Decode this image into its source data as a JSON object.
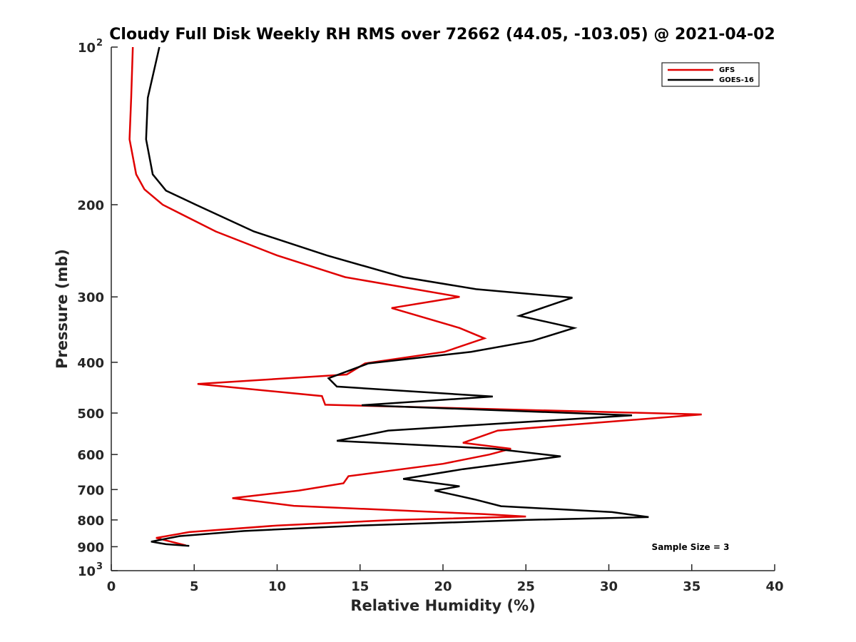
{
  "chart_data": {
    "type": "line",
    "title": "Cloudy Full Disk Weekly RH RMS over 72662 (44.05, -103.05) @ 2021-04-02",
    "xlabel": "Relative Humidity (%)",
    "ylabel": "Pressure (mb)",
    "xlim": [
      0,
      40
    ],
    "ylim": [
      100,
      1000
    ],
    "y_scale": "log",
    "y_reversed": true,
    "grid": false,
    "legend_position": "top-right",
    "x_ticks": [
      "0",
      "5",
      "10",
      "15",
      "20",
      "25",
      "30",
      "35",
      "40"
    ],
    "y_ticks": [
      {
        "value": 100,
        "base": "10",
        "exp": "2"
      },
      {
        "value": 200,
        "label": "200"
      },
      {
        "value": 300,
        "label": "300"
      },
      {
        "value": 400,
        "label": "400"
      },
      {
        "value": 500,
        "label": "500"
      },
      {
        "value": 600,
        "label": "600"
      },
      {
        "value": 700,
        "label": "700"
      },
      {
        "value": 800,
        "label": "800"
      },
      {
        "value": 900,
        "label": "900"
      },
      {
        "value": 1000,
        "base": "10",
        "exp": "3"
      }
    ],
    "annotation": "Sample Size = 3",
    "series": [
      {
        "name": "GFS",
        "color": "#e00000",
        "points": [
          [
            1.3,
            100
          ],
          [
            1.2,
            125
          ],
          [
            1.1,
            150
          ],
          [
            1.5,
            175
          ],
          [
            2.0,
            187
          ],
          [
            3.1,
            200
          ],
          [
            6.3,
            225
          ],
          [
            10.0,
            250
          ],
          [
            14.1,
            275
          ],
          [
            21.0,
            300
          ],
          [
            16.9,
            315
          ],
          [
            21.0,
            344
          ],
          [
            22.5,
            360
          ],
          [
            20.1,
            382
          ],
          [
            15.3,
            402
          ],
          [
            14.2,
            422
          ],
          [
            5.2,
            440
          ],
          [
            12.7,
            464
          ],
          [
            12.9,
            482
          ],
          [
            35.6,
            503
          ],
          [
            23.3,
            540
          ],
          [
            21.2,
            570
          ],
          [
            24.1,
            585
          ],
          [
            22.8,
            600
          ],
          [
            20.0,
            625
          ],
          [
            14.3,
            660
          ],
          [
            14.0,
            681
          ],
          [
            11.3,
            703
          ],
          [
            7.3,
            727
          ],
          [
            11.0,
            752
          ],
          [
            22.5,
            780
          ],
          [
            25.0,
            788
          ],
          [
            17.1,
            800
          ],
          [
            10.0,
            820
          ],
          [
            4.7,
            844
          ],
          [
            2.7,
            866
          ],
          [
            3.4,
            877
          ],
          [
            4.5,
            895
          ]
        ]
      },
      {
        "name": "GOES-16",
        "color": "#000000",
        "points": [
          [
            2.9,
            100
          ],
          [
            2.2,
            125
          ],
          [
            2.1,
            150
          ],
          [
            2.5,
            175
          ],
          [
            3.3,
            188
          ],
          [
            5.1,
            200
          ],
          [
            8.6,
            225
          ],
          [
            13.0,
            250
          ],
          [
            17.6,
            275
          ],
          [
            22.0,
            290
          ],
          [
            27.8,
            301
          ],
          [
            24.6,
            326
          ],
          [
            27.9,
            344
          ],
          [
            25.4,
            364
          ],
          [
            21.7,
            382
          ],
          [
            15.5,
            402
          ],
          [
            13.1,
            429
          ],
          [
            13.6,
            445
          ],
          [
            23.0,
            465
          ],
          [
            15.1,
            483
          ],
          [
            31.4,
            505
          ],
          [
            16.7,
            540
          ],
          [
            13.6,
            565
          ],
          [
            23.1,
            585
          ],
          [
            27.1,
            605
          ],
          [
            21.2,
            640
          ],
          [
            17.6,
            668
          ],
          [
            21.0,
            690
          ],
          [
            19.5,
            703
          ],
          [
            21.9,
            731
          ],
          [
            23.5,
            753
          ],
          [
            30.2,
            773
          ],
          [
            32.4,
            790
          ],
          [
            25.0,
            800
          ],
          [
            15.0,
            820
          ],
          [
            8.0,
            840
          ],
          [
            4.1,
            859
          ],
          [
            2.4,
            880
          ],
          [
            3.3,
            890
          ],
          [
            4.7,
            897
          ]
        ]
      }
    ]
  }
}
